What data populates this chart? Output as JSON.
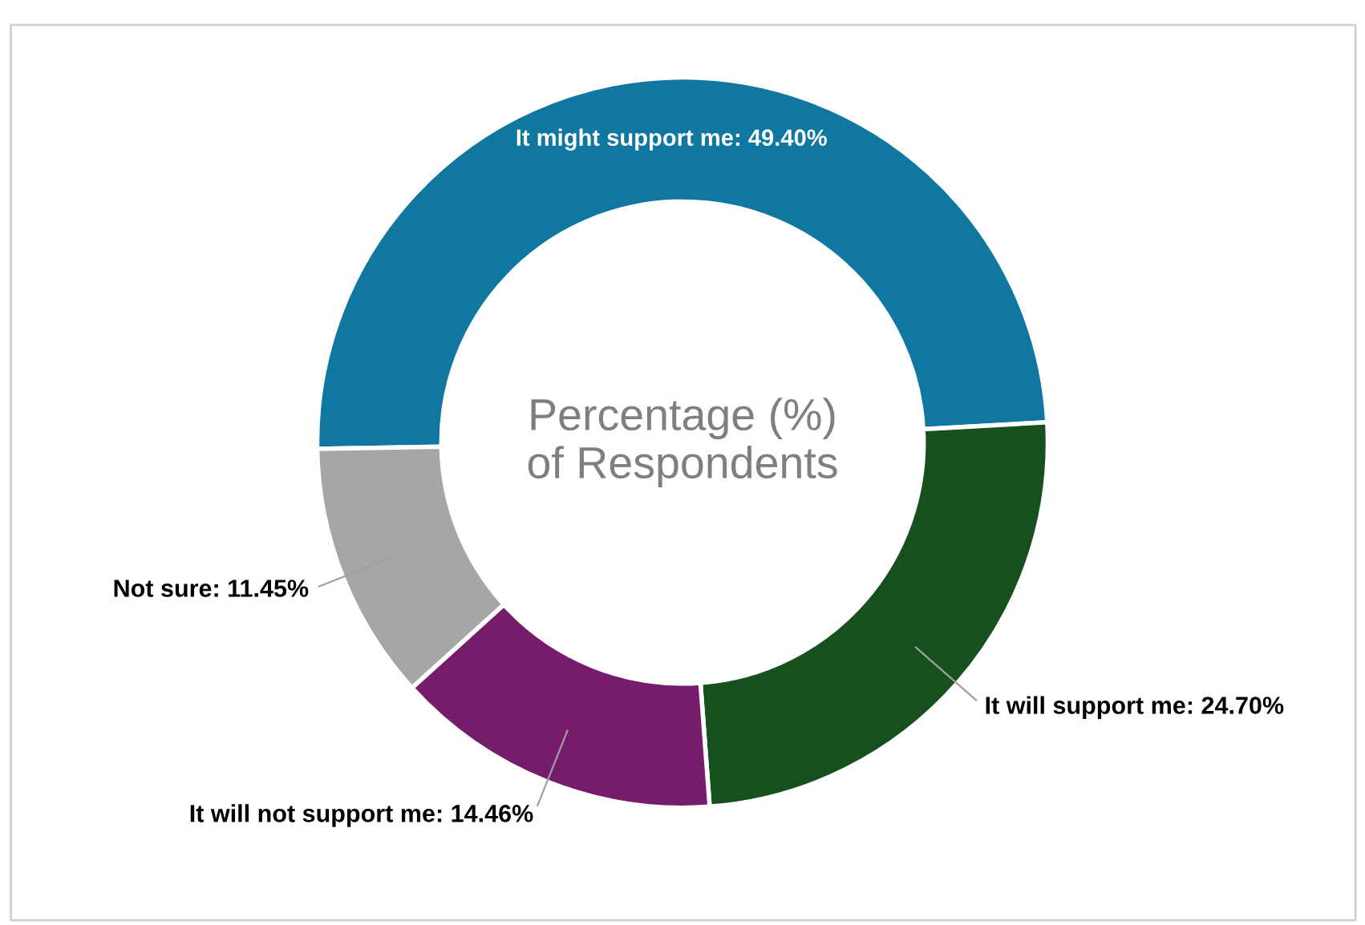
{
  "chart_data": {
    "type": "donut",
    "title": "Percentage (%)\nof Respondents",
    "categories": [
      "It might support me",
      "It will support me",
      "It will not support me",
      "Not sure"
    ],
    "values": [
      49.4,
      24.7,
      14.46,
      11.45
    ],
    "value_labels": [
      "49.40%",
      "24.70%",
      "14.46%",
      "11.45%"
    ],
    "colors": [
      "#0f77a0",
      "#16501f",
      "#761c6b",
      "#a6a6a6"
    ],
    "legend": false
  }
}
